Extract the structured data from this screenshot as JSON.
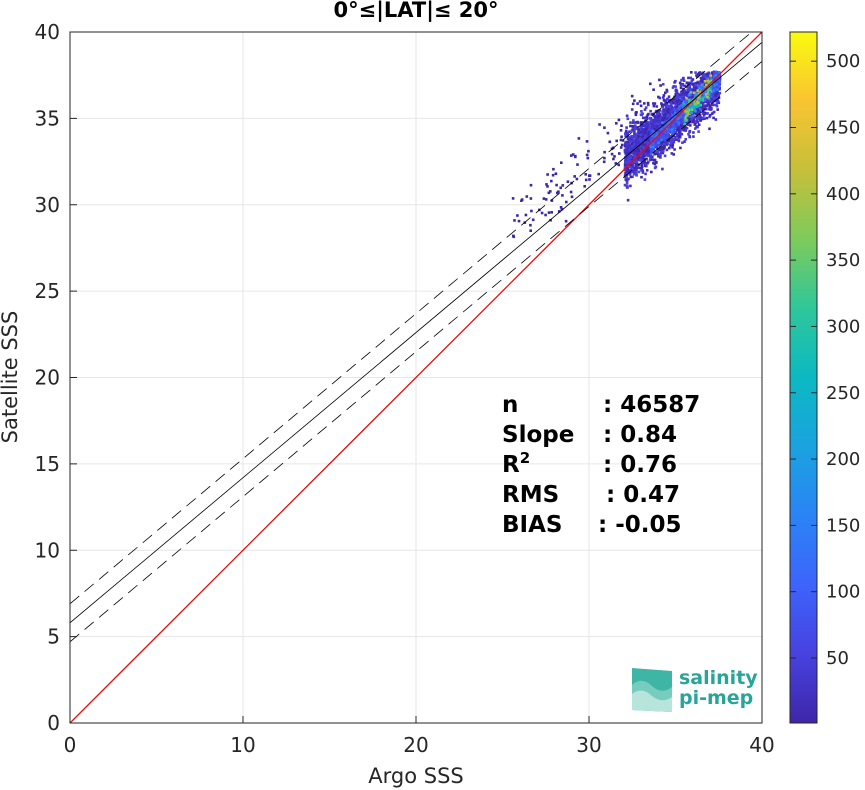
{
  "chart_data": {
    "type": "scatter",
    "title": "0°≤|LAT|≤ 20°",
    "xlabel": "Argo SSS",
    "ylabel": "Satellite SSS",
    "xlim": [
      0,
      40
    ],
    "ylim": [
      0,
      40
    ],
    "xticks": [
      "0",
      "10",
      "20",
      "30",
      "40"
    ],
    "yticks": [
      "0",
      "5",
      "10",
      "15",
      "20",
      "25",
      "30",
      "35",
      "40"
    ],
    "grid": true,
    "identity_line": {
      "slope": 1,
      "intercept": 0,
      "color": "#ff0000"
    },
    "fit_line": {
      "slope": 0.84,
      "intercept": 5.8,
      "color": "#000000"
    },
    "fit_band": {
      "offset": 1.1,
      "style": "dashed"
    },
    "density_center": {
      "x": [
        33,
        37.5
      ],
      "y": [
        33.5,
        37
      ]
    },
    "colorbar": {
      "min": 1,
      "max": 522,
      "ticks": [
        "50",
        "100",
        "150",
        "200",
        "250",
        "300",
        "350",
        "400",
        "450",
        "500"
      ],
      "colormap": "parula"
    },
    "stats": [
      {
        "label": "n",
        "value": ": 46587"
      },
      {
        "label": "Slope",
        "value": ": 0.84"
      },
      {
        "label": "R",
        "sup": "2",
        "value": ": 0.76"
      },
      {
        "label": "RMS",
        "value": ": 0.47"
      },
      {
        "label": "BIAS",
        "value": ": -0.05"
      }
    ]
  },
  "logo": {
    "line1": "salinity",
    "line2": "pi-mep"
  }
}
